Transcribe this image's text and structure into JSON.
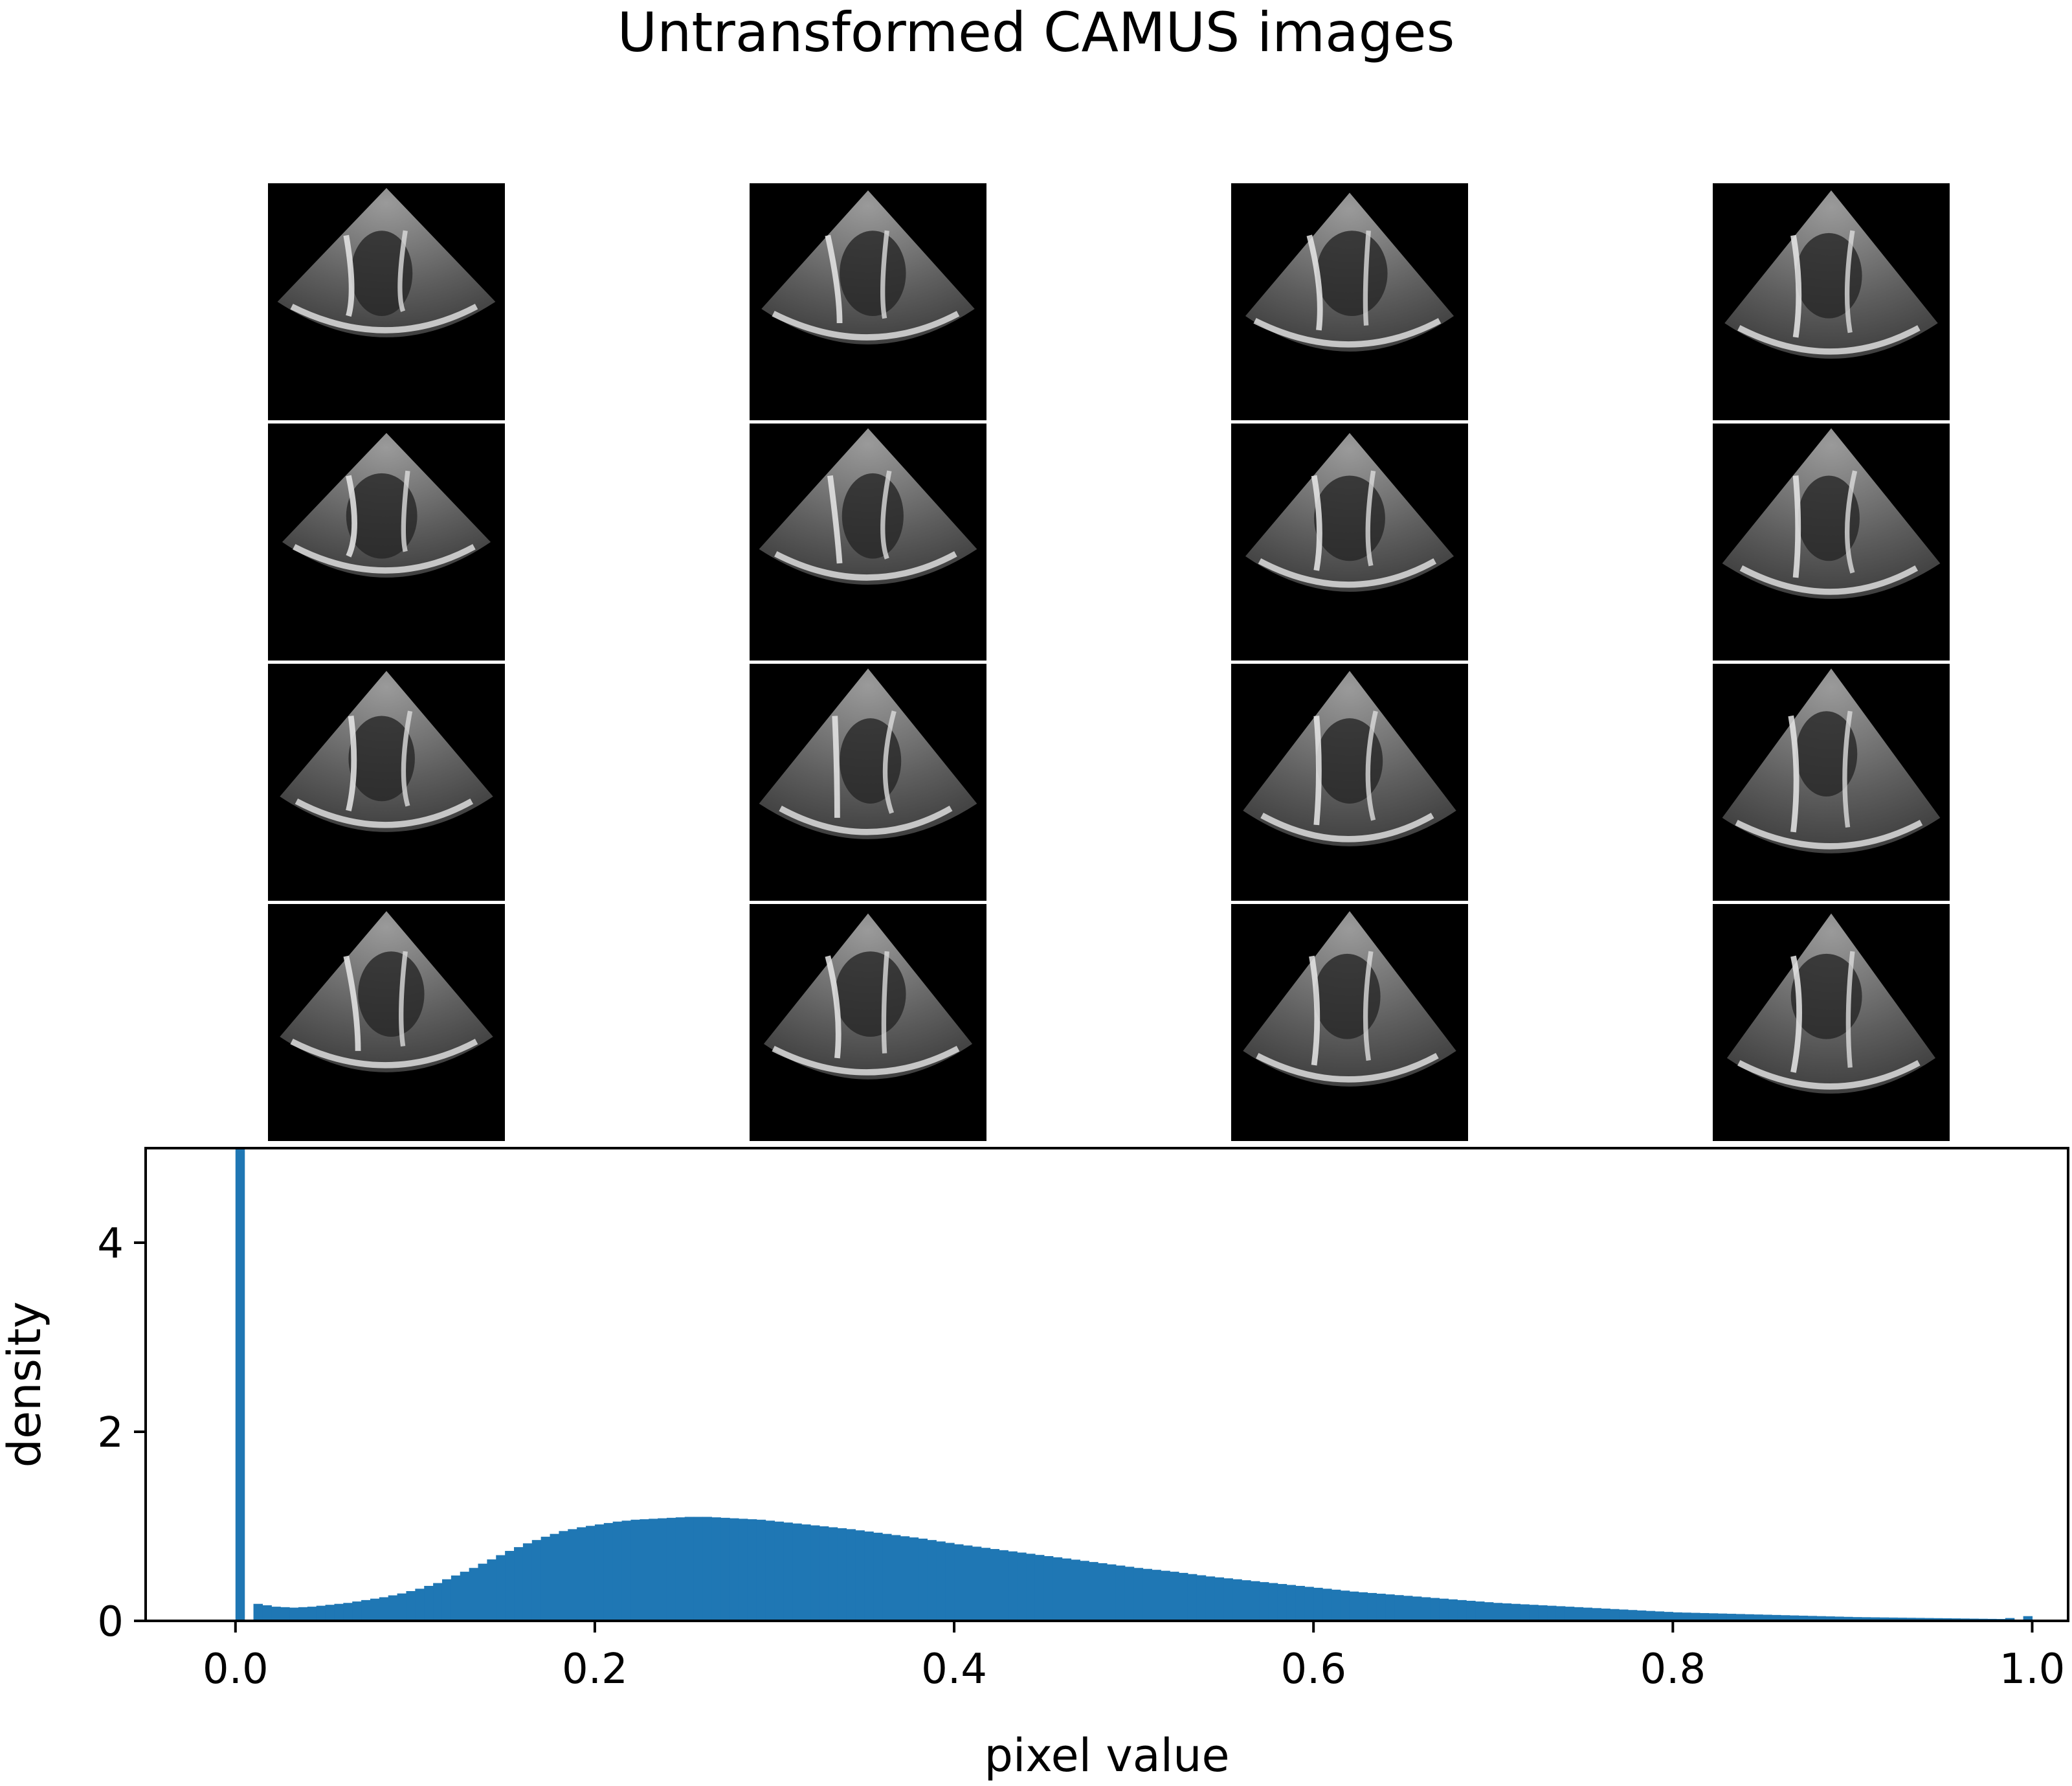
{
  "figure": {
    "title": "Untransformed CAMUS images"
  },
  "image_grid": {
    "rows": 4,
    "cols": 4,
    "cell_color": "#000000",
    "cells": [
      {
        "row": 0,
        "col": 0,
        "icon": "echo-sector-icon"
      },
      {
        "row": 0,
        "col": 1,
        "icon": "echo-sector-icon"
      },
      {
        "row": 0,
        "col": 2,
        "icon": "echo-sector-icon"
      },
      {
        "row": 0,
        "col": 3,
        "icon": "echo-sector-icon"
      },
      {
        "row": 1,
        "col": 0,
        "icon": "echo-sector-icon"
      },
      {
        "row": 1,
        "col": 1,
        "icon": "echo-sector-icon"
      },
      {
        "row": 1,
        "col": 2,
        "icon": "echo-sector-icon"
      },
      {
        "row": 1,
        "col": 3,
        "icon": "echo-sector-icon"
      },
      {
        "row": 2,
        "col": 0,
        "icon": "echo-sector-icon"
      },
      {
        "row": 2,
        "col": 1,
        "icon": "echo-sector-icon"
      },
      {
        "row": 2,
        "col": 2,
        "icon": "echo-sector-icon"
      },
      {
        "row": 2,
        "col": 3,
        "icon": "echo-sector-icon"
      },
      {
        "row": 3,
        "col": 0,
        "icon": "echo-sector-icon"
      },
      {
        "row": 3,
        "col": 1,
        "icon": "echo-sector-icon"
      },
      {
        "row": 3,
        "col": 2,
        "icon": "echo-sector-icon"
      },
      {
        "row": 3,
        "col": 3,
        "icon": "echo-sector-icon"
      }
    ]
  },
  "chart_data": {
    "type": "bar",
    "subtype": "histogram",
    "xlabel": "pixel value",
    "ylabel": "density",
    "xlim": [
      -0.05,
      1.02
    ],
    "ylim": [
      0,
      5
    ],
    "xticks": [
      "0.0",
      "0.2",
      "0.4",
      "0.6",
      "0.8",
      "1.0"
    ],
    "yticks": [
      "0",
      "2",
      "4"
    ],
    "bar_color": "#1f77b4",
    "bin_width": 0.005,
    "x": [
      0.0,
      0.01,
      0.02,
      0.03,
      0.04,
      0.05,
      0.06,
      0.07,
      0.08,
      0.09,
      0.1,
      0.11,
      0.12,
      0.13,
      0.14,
      0.15,
      0.16,
      0.17,
      0.18,
      0.19,
      0.2,
      0.21,
      0.22,
      0.23,
      0.24,
      0.25,
      0.26,
      0.27,
      0.28,
      0.29,
      0.3,
      0.32,
      0.34,
      0.36,
      0.38,
      0.4,
      0.42,
      0.44,
      0.46,
      0.48,
      0.5,
      0.52,
      0.54,
      0.56,
      0.58,
      0.6,
      0.62,
      0.64,
      0.66,
      0.68,
      0.7,
      0.72,
      0.74,
      0.76,
      0.78,
      0.8,
      0.82,
      0.84,
      0.86,
      0.88,
      0.9,
      0.92,
      0.94,
      0.96,
      0.98,
      0.995
    ],
    "values": [
      5.0,
      0.18,
      0.15,
      0.14,
      0.15,
      0.17,
      0.19,
      0.22,
      0.25,
      0.29,
      0.34,
      0.4,
      0.48,
      0.56,
      0.65,
      0.74,
      0.82,
      0.89,
      0.95,
      0.99,
      1.02,
      1.05,
      1.07,
      1.08,
      1.09,
      1.1,
      1.1,
      1.09,
      1.08,
      1.07,
      1.05,
      1.01,
      0.97,
      0.92,
      0.87,
      0.81,
      0.76,
      0.71,
      0.66,
      0.61,
      0.56,
      0.52,
      0.47,
      0.43,
      0.39,
      0.35,
      0.31,
      0.28,
      0.25,
      0.22,
      0.19,
      0.17,
      0.15,
      0.13,
      0.11,
      0.09,
      0.08,
      0.07,
      0.06,
      0.05,
      0.04,
      0.035,
      0.03,
      0.025,
      0.02,
      0.05
    ]
  }
}
